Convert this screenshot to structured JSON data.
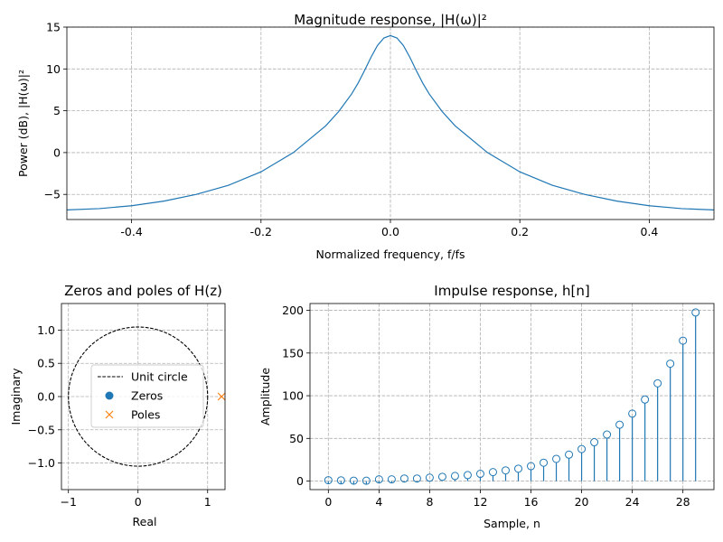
{
  "chart_data": [
    {
      "type": "line",
      "title": "Magnitude response, |H(ω)|²",
      "xlabel": "Normalized frequency, f/fs",
      "ylabel": "Power (dB), |H(ω)|²",
      "xlim": [
        -0.5,
        0.5
      ],
      "ylim": [
        -8,
        15
      ],
      "xticks": [
        -0.4,
        -0.2,
        0.0,
        0.2,
        0.4
      ],
      "xtick_labels": [
        "-0.4",
        "-0.2",
        "0.0",
        "0.2",
        "0.4"
      ],
      "yticks": [
        -5,
        0,
        5,
        10,
        15
      ],
      "ytick_labels": [
        "−5",
        "0",
        "5",
        "10",
        "15"
      ],
      "grid": true,
      "series": [
        {
          "name": "|H(ω)|²",
          "color": "#1f77b4",
          "x": [
            -0.5,
            -0.45,
            -0.4,
            -0.35,
            -0.3,
            -0.25,
            -0.2,
            -0.15,
            -0.1,
            -0.08,
            -0.06,
            -0.05,
            -0.04,
            -0.03,
            -0.02,
            -0.01,
            0.0,
            0.01,
            0.02,
            0.03,
            0.04,
            0.05,
            0.06,
            0.08,
            0.1,
            0.15,
            0.2,
            0.25,
            0.3,
            0.35,
            0.4,
            0.45,
            0.5
          ],
          "y": [
            -6.85,
            -6.7,
            -6.35,
            -5.8,
            -5.0,
            -3.9,
            -2.3,
            0.0,
            3.2,
            4.9,
            7.0,
            8.3,
            9.8,
            11.4,
            12.8,
            13.7,
            13.98,
            13.7,
            12.8,
            11.4,
            9.8,
            8.3,
            7.0,
            4.9,
            3.2,
            0.0,
            -2.3,
            -3.9,
            -5.0,
            -5.8,
            -6.35,
            -6.7,
            -6.85
          ]
        }
      ]
    },
    {
      "type": "scatter",
      "title": "Zeros and poles of H(z)",
      "xlabel": "Real",
      "ylabel": "Imaginary",
      "xlim": [
        -1.1,
        1.25
      ],
      "ylim": [
        -1.4,
        1.4
      ],
      "xticks": [
        -1,
        0,
        1
      ],
      "xtick_labels": [
        "−1",
        "0",
        "1"
      ],
      "yticks": [
        -1.0,
        -0.5,
        0.0,
        0.5,
        1.0
      ],
      "ytick_labels": [
        "−1.0",
        "−0.5",
        "0.0",
        "0.5",
        "1.0"
      ],
      "grid": true,
      "unit_circle_radius": 1.0,
      "zeros": [],
      "poles": [
        {
          "real": 1.2,
          "imag": 0.0
        }
      ],
      "legend": {
        "placement": "center",
        "entries": [
          {
            "label": "Unit circle",
            "style": "dashed-line",
            "color": "#000000"
          },
          {
            "label": "Zeros",
            "style": "circle",
            "color": "#1f77b4"
          },
          {
            "label": "Poles",
            "style": "x",
            "color": "#ff7f0e"
          }
        ]
      }
    },
    {
      "type": "stem",
      "title": "Impulse response, h[n]",
      "xlabel": "Sample, n",
      "ylabel": "Amplitude",
      "xlim": [
        -1.45,
        30.45
      ],
      "ylim": [
        -10,
        208
      ],
      "xticks": [
        0,
        4,
        8,
        12,
        16,
        20,
        24,
        28
      ],
      "xtick_labels": [
        "0",
        "4",
        "8",
        "12",
        "16",
        "20",
        "24",
        "28"
      ],
      "yticks": [
        0,
        50,
        100,
        150,
        200
      ],
      "ytick_labels": [
        "0",
        "50",
        "100",
        "150",
        "200"
      ],
      "grid": true,
      "color": "#1f77b4",
      "n": [
        0,
        1,
        2,
        3,
        4,
        5,
        6,
        7,
        8,
        9,
        10,
        11,
        12,
        13,
        14,
        15,
        16,
        17,
        18,
        19,
        20,
        21,
        22,
        23,
        24,
        25,
        26,
        27,
        28,
        29
      ],
      "values": [
        1.0,
        0.8,
        0.5,
        0.4,
        2.0,
        2.0,
        3.0,
        3.0,
        4.0,
        5.0,
        6.0,
        7.0,
        8.5,
        10.5,
        12.5,
        14.5,
        17.5,
        21.5,
        26.0,
        31.0,
        37.5,
        45.5,
        54.5,
        66.0,
        79.0,
        95.5,
        114.5,
        137.5,
        164.5,
        197.5
      ]
    }
  ]
}
